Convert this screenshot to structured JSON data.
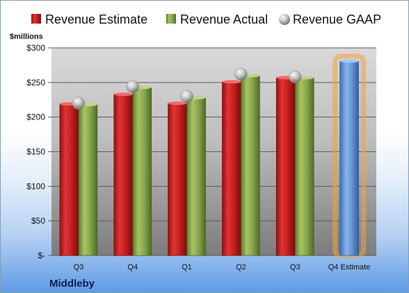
{
  "company": "Middleby",
  "chart_data": {
    "type": "bar",
    "unit_label": "$millions",
    "categories": [
      "Q3",
      "Q4",
      "Q1",
      "Q2",
      "Q3",
      "Q4 Estimate"
    ],
    "series": [
      {
        "name": "Revenue Estimate",
        "kind": "bar",
        "color": "#d22a2a",
        "values": [
          219,
          233,
          220,
          251,
          257,
          281
        ]
      },
      {
        "name": "Revenue Actual",
        "kind": "bar",
        "color": "#8fae52",
        "values": [
          218,
          243,
          228,
          260,
          257,
          null
        ]
      },
      {
        "name": "Revenue GAAP",
        "kind": "marker",
        "color": "#b9b9b9",
        "values": [
          220,
          244,
          230,
          262,
          258,
          null
        ]
      }
    ],
    "highlight": {
      "category_index": 5,
      "color": "#5b8fd4",
      "glow": "#f6a13a"
    },
    "ylim": [
      0,
      300
    ],
    "yticks": [
      0,
      50,
      100,
      150,
      200,
      250,
      300
    ],
    "ytick_labels": [
      "$-",
      "$50",
      "$100",
      "$150",
      "$200",
      "$250",
      "$300"
    ],
    "grid": true,
    "legend_position": "top"
  }
}
